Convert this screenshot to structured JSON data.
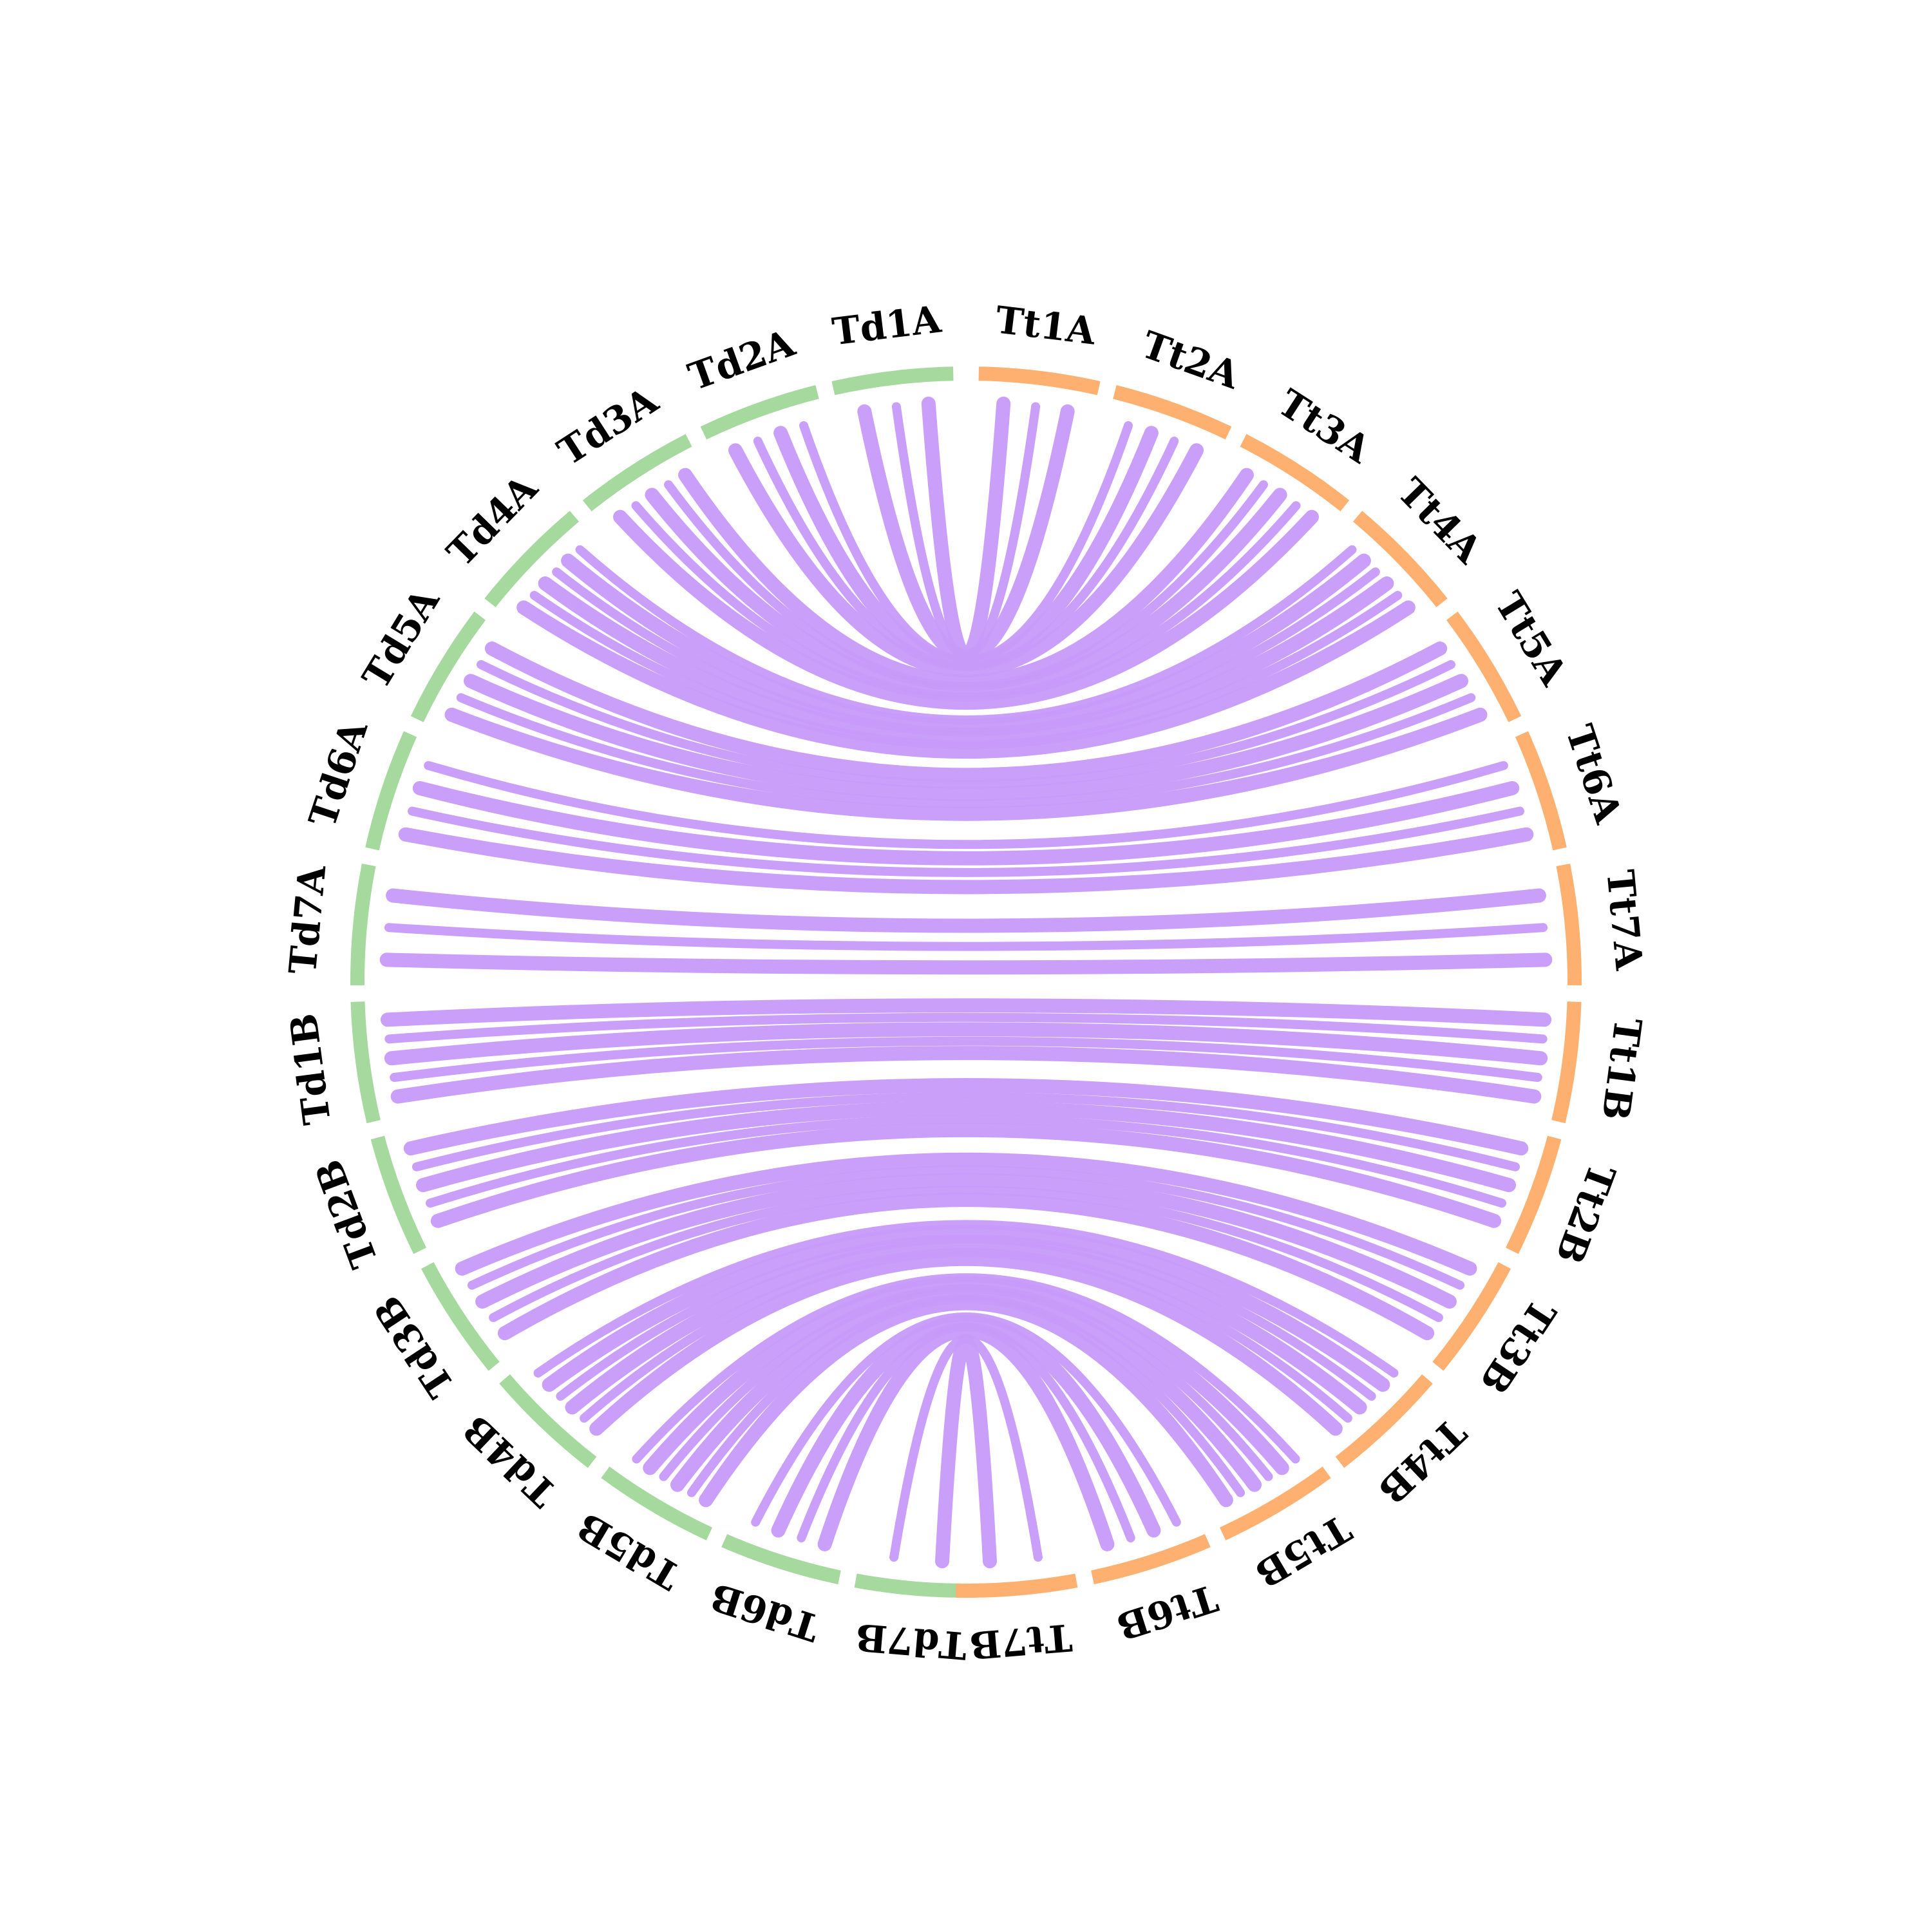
{
  "diagram": {
    "type": "circos-synteny",
    "colors": {
      "genome_left": "#a5d99e",
      "genome_right": "#fdb06f",
      "link": "#c79afa",
      "label": "#000000"
    },
    "chromosomes": [
      {
        "id": "Td1A",
        "label": "Td1A",
        "genome": "left"
      },
      {
        "id": "Td2A",
        "label": "Td2A",
        "genome": "left"
      },
      {
        "id": "Td3A",
        "label": "Td3A",
        "genome": "left"
      },
      {
        "id": "Td4A",
        "label": "Td4A",
        "genome": "left"
      },
      {
        "id": "Td5A",
        "label": "Td5A",
        "genome": "left"
      },
      {
        "id": "Td6A",
        "label": "Td6A",
        "genome": "left"
      },
      {
        "id": "Td7A",
        "label": "Td7A",
        "genome": "left"
      },
      {
        "id": "Td1B",
        "label": "Td1B",
        "genome": "left"
      },
      {
        "id": "Td2B",
        "label": "Td2B",
        "genome": "left"
      },
      {
        "id": "Td3B",
        "label": "Td3B",
        "genome": "left"
      },
      {
        "id": "Td4B",
        "label": "Td4B",
        "genome": "left"
      },
      {
        "id": "Td5B",
        "label": "Td5B",
        "genome": "left"
      },
      {
        "id": "Td6B",
        "label": "Td6B",
        "genome": "left"
      },
      {
        "id": "Td7B",
        "label": "Td7B",
        "genome": "left"
      },
      {
        "id": "Tt1A",
        "label": "Tt1A",
        "genome": "right"
      },
      {
        "id": "Tt2A",
        "label": "Tt2A",
        "genome": "right"
      },
      {
        "id": "Tt3A",
        "label": "Tt3A",
        "genome": "right"
      },
      {
        "id": "Tt4A",
        "label": "Tt4A",
        "genome": "right"
      },
      {
        "id": "Tt5A",
        "label": "Tt5A",
        "genome": "right"
      },
      {
        "id": "Tt6A",
        "label": "Tt6A",
        "genome": "right"
      },
      {
        "id": "Tt7A",
        "label": "Tt7A",
        "genome": "right"
      },
      {
        "id": "Tt1B",
        "label": "Tt1B",
        "genome": "right"
      },
      {
        "id": "Tt2B",
        "label": "Tt2B",
        "genome": "right"
      },
      {
        "id": "Tt3B",
        "label": "Tt3B",
        "genome": "right"
      },
      {
        "id": "Tt4B",
        "label": "Tt4B",
        "genome": "right"
      },
      {
        "id": "Tt5B",
        "label": "Tt5B",
        "genome": "right"
      },
      {
        "id": "Tt6B",
        "label": "Tt6B",
        "genome": "right"
      },
      {
        "id": "Tt7B",
        "label": "Tt7B",
        "genome": "right"
      }
    ],
    "links": [
      {
        "from": "Td1A",
        "to": "Tt1A",
        "bundle": 3
      },
      {
        "from": "Td2A",
        "to": "Tt2A",
        "bundle": 4
      },
      {
        "from": "Td3A",
        "to": "Tt3A",
        "bundle": 5
      },
      {
        "from": "Td4A",
        "to": "Tt4A",
        "bundle": 6
      },
      {
        "from": "Td5A",
        "to": "Tt5A",
        "bundle": 5
      },
      {
        "from": "Td6A",
        "to": "Tt6A",
        "bundle": 4
      },
      {
        "from": "Td7A",
        "to": "Tt7A",
        "bundle": 3
      },
      {
        "from": "Td1B",
        "to": "Tt1B",
        "bundle": 5
      },
      {
        "from": "Td2B",
        "to": "Tt2B",
        "bundle": 5
      },
      {
        "from": "Td3B",
        "to": "Tt3B",
        "bundle": 5
      },
      {
        "from": "Td4B",
        "to": "Tt4B",
        "bundle": 6
      },
      {
        "from": "Td5B",
        "to": "Tt5B",
        "bundle": 6
      },
      {
        "from": "Td6B",
        "to": "Tt6B",
        "bundle": 4
      },
      {
        "from": "Td7B",
        "to": "Tt7B",
        "bundle": 2
      }
    ]
  }
}
